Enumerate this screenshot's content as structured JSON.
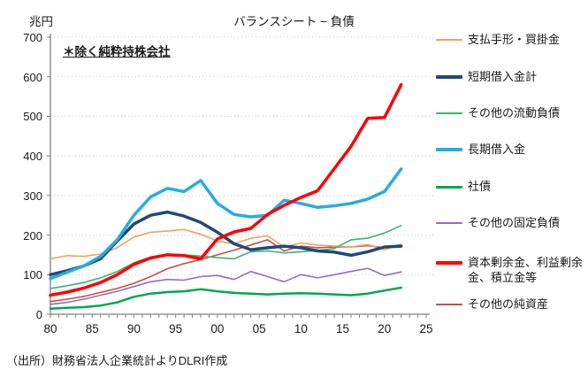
{
  "chart_data": {
    "type": "line",
    "title": "バランスシート − 負債",
    "unit_label": "兆円",
    "annotation": "＊除く純粋持株会社",
    "source": "（出所）財務省法人企業統計よりDLRI作成",
    "legend_position": "right",
    "grid": "horizontal-dotted",
    "x_years": [
      1980,
      1982,
      1984,
      1986,
      1988,
      1990,
      1992,
      1994,
      1996,
      1998,
      2000,
      2002,
      2004,
      2006,
      2008,
      2010,
      2012,
      2014,
      2016,
      2018,
      2020,
      2022
    ],
    "x_axis": {
      "min": 1980,
      "max": 2025,
      "tick_step": 1,
      "label_years": [
        1980,
        1985,
        1990,
        1995,
        2000,
        2005,
        2010,
        2015,
        2020,
        2025
      ],
      "tick_labels": [
        "80",
        "85",
        "90",
        "95",
        "00",
        "05",
        "10",
        "15",
        "20",
        "25"
      ]
    },
    "y_axis": {
      "min": 0,
      "max": 700,
      "tick_step": 100,
      "tick_labels": [
        "0",
        "100",
        "200",
        "300",
        "400",
        "500",
        "600",
        "700"
      ]
    },
    "series": [
      {
        "name": "支払手形・買掛金",
        "color": "#F2A25C",
        "width": 1.6,
        "values": [
          140,
          148,
          146,
          152,
          168,
          195,
          207,
          210,
          214,
          202,
          185,
          178,
          192,
          198,
          170,
          180,
          175,
          172,
          170,
          176,
          163,
          176
        ]
      },
      {
        "name": "短期借入金計",
        "color": "#1F4978",
        "width": 3.5,
        "values": [
          100,
          110,
          122,
          140,
          185,
          228,
          250,
          258,
          248,
          232,
          207,
          178,
          163,
          168,
          172,
          168,
          160,
          157,
          149,
          158,
          170,
          172
        ]
      },
      {
        "name": "その他の流動負債",
        "color": "#3CB371",
        "width": 1.6,
        "values": [
          65,
          72,
          80,
          92,
          108,
          130,
          145,
          150,
          150,
          147,
          143,
          140,
          158,
          160,
          155,
          158,
          161,
          166,
          188,
          192,
          205,
          224
        ]
      },
      {
        "name": "長期借入金",
        "color": "#29ABE2",
        "width": 3.5,
        "values": [
          90,
          106,
          122,
          146,
          188,
          250,
          296,
          318,
          310,
          338,
          280,
          252,
          246,
          250,
          288,
          280,
          270,
          274,
          280,
          291,
          310,
          367
        ]
      },
      {
        "name": "社債",
        "color": "#00A651",
        "width": 2.5,
        "values": [
          14,
          16,
          18,
          22,
          30,
          44,
          52,
          56,
          58,
          63,
          58,
          54,
          52,
          50,
          52,
          53,
          52,
          50,
          48,
          52,
          60,
          67
        ]
      },
      {
        "name": "その他の固定負債",
        "color": "#8E6FC0",
        "width": 1.6,
        "values": [
          25,
          30,
          38,
          48,
          58,
          70,
          82,
          88,
          86,
          95,
          98,
          88,
          108,
          95,
          82,
          100,
          92,
          100,
          108,
          116,
          98,
          107
        ]
      },
      {
        "name": "資本剰余金、利益剰余金、積立金等",
        "color": "#FE0000",
        "width": 3.5,
        "values": [
          48,
          56,
          66,
          80,
          100,
          126,
          142,
          150,
          148,
          140,
          190,
          208,
          217,
          252,
          275,
          295,
          312,
          368,
          424,
          495,
          497,
          580
        ]
      },
      {
        "name": "その他の純資産",
        "color": "#C0504D",
        "width": 1.6,
        "values": [
          32,
          38,
          45,
          55,
          65,
          78,
          95,
          115,
          128,
          138,
          150,
          162,
          175,
          188,
          160,
          172,
          168,
          170,
          170,
          173,
          168,
          176
        ]
      }
    ]
  }
}
